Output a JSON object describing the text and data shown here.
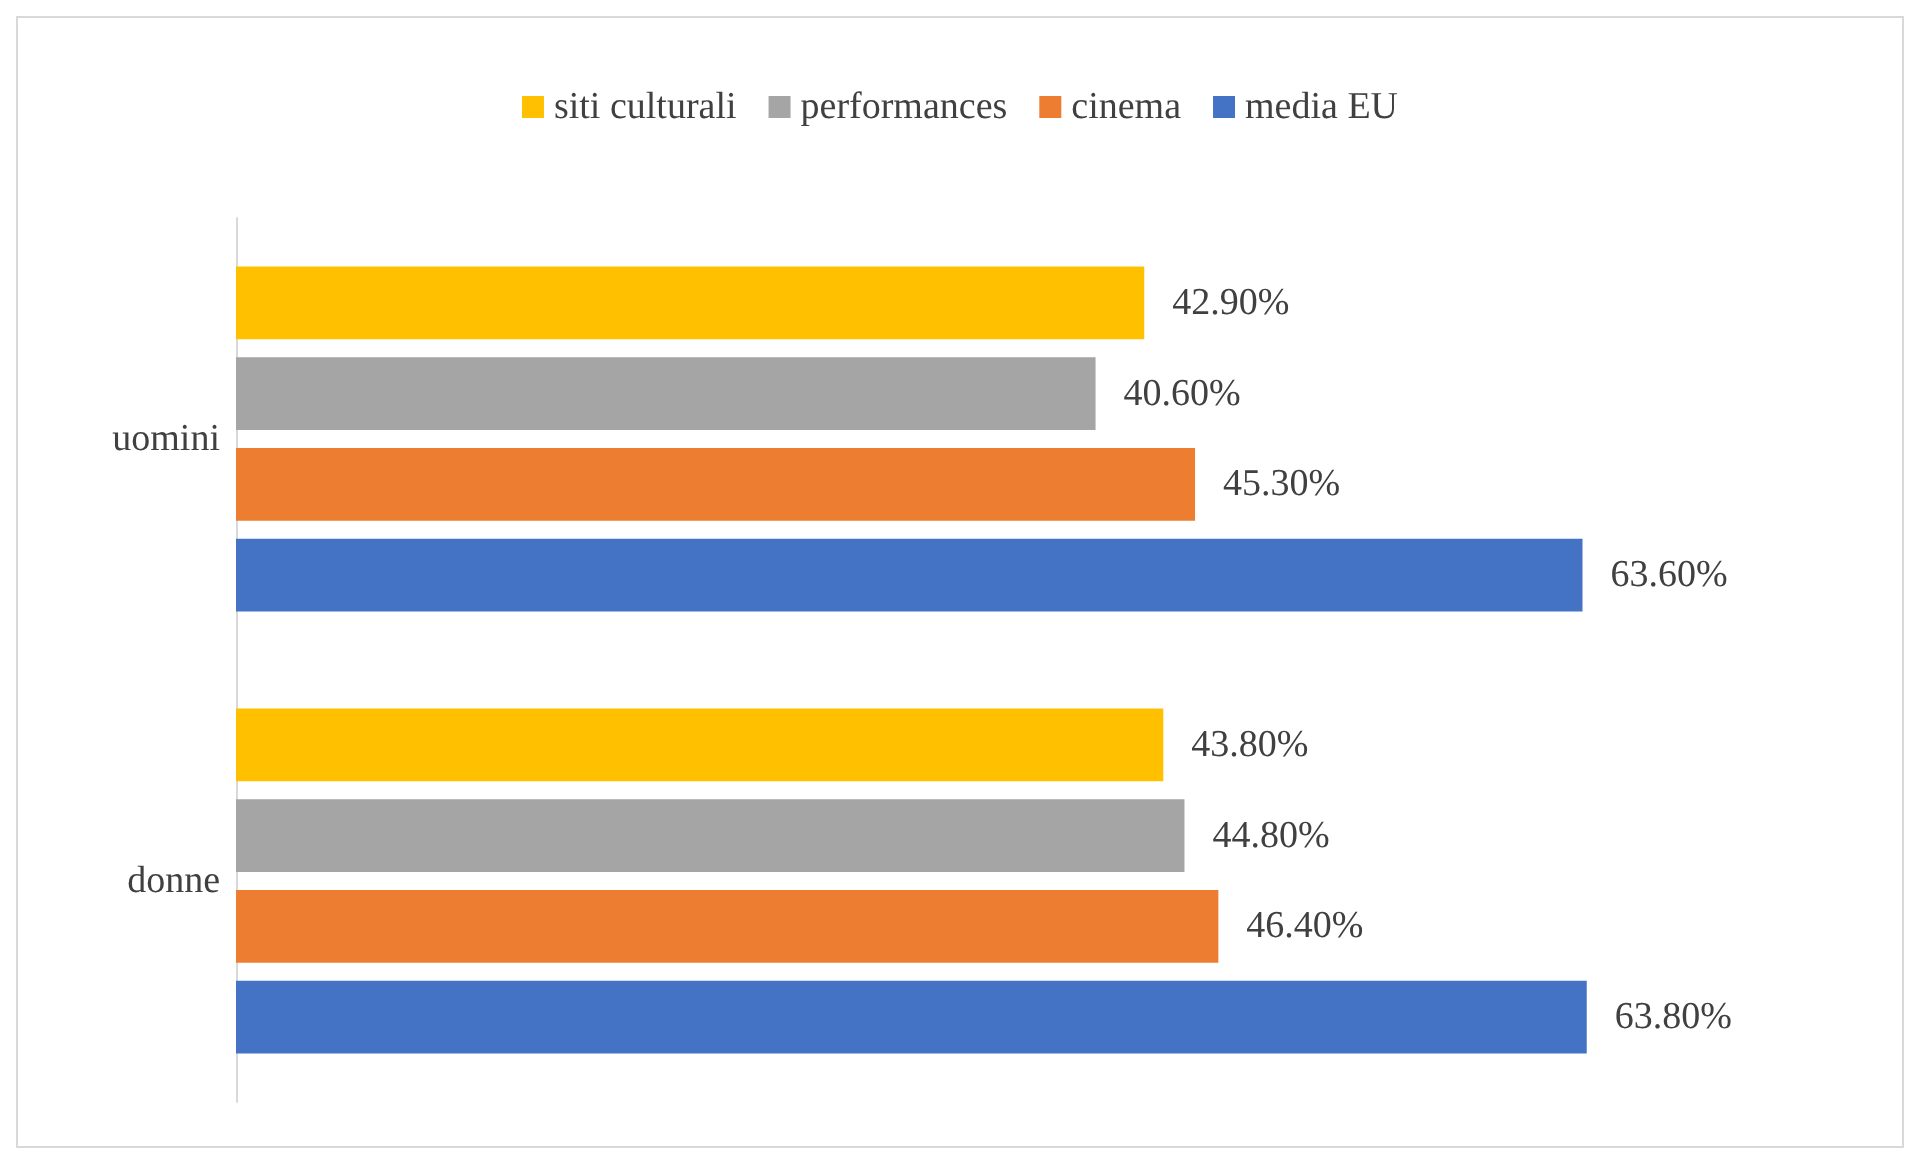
{
  "chart_data": {
    "type": "bar",
    "orientation": "horizontal",
    "categories": [
      "uomini",
      "donne"
    ],
    "series": [
      {
        "name": "siti culturali",
        "color": "#ffc000",
        "values": [
          42.9,
          43.8
        ],
        "value_labels": [
          "42.90%",
          "43.80%"
        ]
      },
      {
        "name": "performances",
        "color": "#a5a5a5",
        "values": [
          40.6,
          44.8
        ],
        "value_labels": [
          "40.60%",
          "44.80%"
        ]
      },
      {
        "name": "cinema",
        "color": "#ed7d31",
        "values": [
          45.3,
          46.4
        ],
        "value_labels": [
          "45.30%",
          "46.40%"
        ]
      },
      {
        "name": "media EU",
        "color": "#4472c4",
        "values": [
          63.6,
          63.8
        ],
        "value_labels": [
          "63.60%",
          "63.80%"
        ]
      }
    ],
    "legend": "top"
  }
}
